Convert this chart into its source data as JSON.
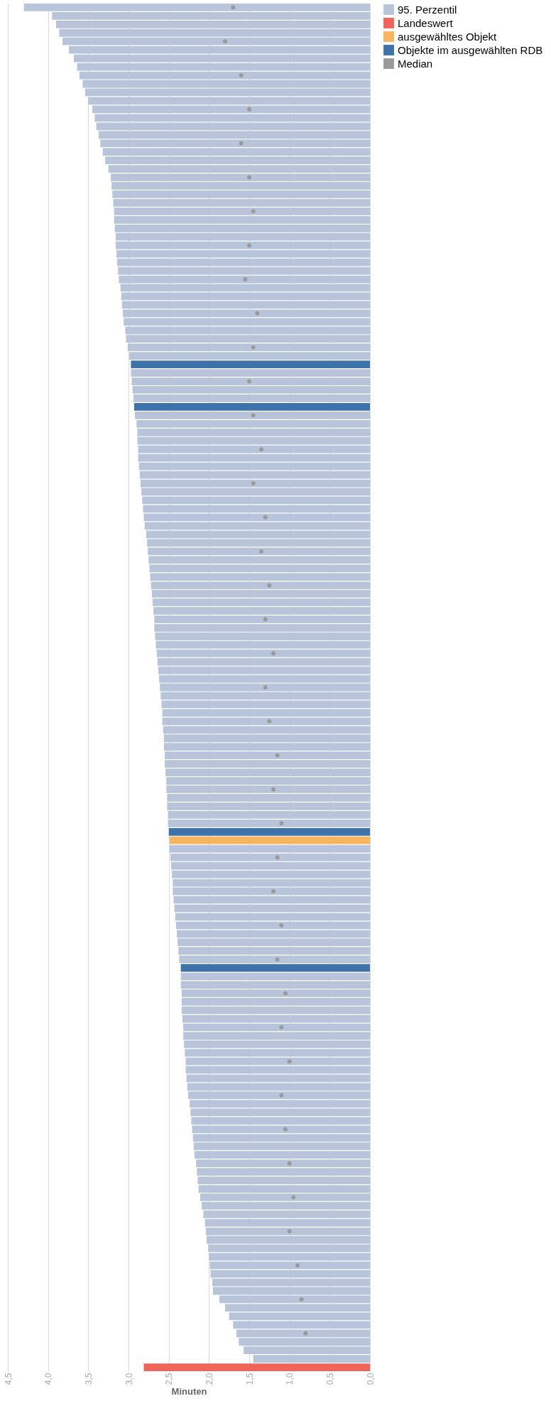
{
  "chart_data": {
    "type": "bar",
    "orientation": "horizontal",
    "xlabel": "Minuten",
    "categories": [
      null,
      null,
      null,
      null,
      null,
      null,
      null,
      null,
      null,
      null,
      null,
      null,
      null,
      null,
      null,
      null,
      null,
      null,
      null,
      null,
      null,
      null,
      null,
      null,
      null,
      null,
      null,
      null,
      null,
      null,
      null,
      null,
      null,
      null,
      null,
      null,
      null,
      null,
      null,
      null,
      null,
      null,
      null,
      null,
      null,
      null,
      null,
      null,
      null,
      null,
      null,
      null,
      null,
      null,
      null,
      null,
      null,
      null,
      null,
      null,
      null,
      null,
      null,
      null,
      null,
      null,
      null,
      null,
      null,
      null,
      null,
      null,
      null,
      null,
      null,
      null,
      null,
      null,
      null,
      null,
      null,
      null,
      null,
      null,
      null,
      null,
      null,
      null,
      null,
      null,
      null,
      null,
      null,
      null,
      null,
      null,
      null,
      null,
      null,
      null,
      null,
      null,
      null,
      null,
      null,
      null,
      null,
      null,
      null,
      null,
      null,
      null,
      null,
      null,
      null,
      null,
      null,
      null,
      null,
      null,
      null,
      null,
      null,
      null,
      null,
      null,
      null,
      null,
      null,
      null,
      null,
      null,
      null,
      null,
      null,
      null,
      null,
      null,
      null,
      null,
      null,
      null,
      null,
      null,
      null,
      null,
      null,
      null,
      null,
      null,
      null,
      null,
      null,
      null,
      null,
      null,
      null,
      null,
      null,
      null,
      null
    ],
    "series": [
      {
        "name": "95. Perzentil",
        "color": "#b7c4d9",
        "values": [
          4.3,
          3.95,
          3.9,
          3.86,
          3.82,
          3.74,
          3.68,
          3.64,
          3.61,
          3.57,
          3.54,
          3.5,
          3.45,
          3.42,
          3.4,
          3.37,
          3.35,
          3.32,
          3.29,
          3.25,
          3.22,
          3.21,
          3.2,
          3.19,
          3.18,
          3.18,
          3.17,
          3.16,
          3.16,
          3.15,
          3.14,
          3.13,
          3.12,
          3.1,
          3.09,
          3.08,
          3.07,
          3.06,
          3.04,
          3.03,
          3.01,
          2.99,
          null,
          2.97,
          2.96,
          2.95,
          2.94,
          null,
          2.92,
          2.9,
          2.89,
          2.89,
          2.88,
          2.88,
          2.87,
          2.86,
          2.85,
          2.84,
          2.83,
          2.82,
          2.81,
          2.8,
          2.78,
          2.77,
          2.76,
          2.75,
          2.74,
          2.73,
          2.72,
          2.71,
          2.7,
          2.69,
          2.68,
          2.68,
          2.67,
          2.66,
          2.65,
          2.64,
          2.63,
          2.62,
          2.61,
          2.6,
          2.59,
          2.58,
          2.58,
          2.57,
          2.56,
          2.56,
          2.55,
          2.55,
          2.54,
          2.53,
          2.53,
          2.52,
          2.52,
          2.51,
          2.51,
          null,
          null,
          2.49,
          2.48,
          2.47,
          2.46,
          2.45,
          2.45,
          2.44,
          2.43,
          2.42,
          2.41,
          2.4,
          2.39,
          2.38,
          2.37,
          null,
          2.35,
          2.35,
          2.34,
          2.34,
          2.34,
          2.33,
          2.32,
          2.32,
          2.31,
          2.3,
          2.29,
          2.29,
          2.28,
          2.27,
          2.26,
          2.24,
          2.23,
          2.22,
          2.21,
          2.2,
          2.19,
          2.18,
          2.16,
          2.15,
          2.14,
          2.13,
          2.11,
          2.09,
          2.07,
          2.05,
          2.04,
          2.03,
          2.01,
          2.0,
          1.99,
          1.98,
          1.96,
          1.95,
          1.87,
          1.8,
          1.75,
          1.7,
          1.66,
          1.63,
          1.57,
          1.45,
          null
        ]
      },
      {
        "name": "Landeswert",
        "color": "#f0645a",
        "values": [
          null,
          null,
          null,
          null,
          null,
          null,
          null,
          null,
          null,
          null,
          null,
          null,
          null,
          null,
          null,
          null,
          null,
          null,
          null,
          null,
          null,
          null,
          null,
          null,
          null,
          null,
          null,
          null,
          null,
          null,
          null,
          null,
          null,
          null,
          null,
          null,
          null,
          null,
          null,
          null,
          null,
          null,
          null,
          null,
          null,
          null,
          null,
          null,
          null,
          null,
          null,
          null,
          null,
          null,
          null,
          null,
          null,
          null,
          null,
          null,
          null,
          null,
          null,
          null,
          null,
          null,
          null,
          null,
          null,
          null,
          null,
          null,
          null,
          null,
          null,
          null,
          null,
          null,
          null,
          null,
          null,
          null,
          null,
          null,
          null,
          null,
          null,
          null,
          null,
          null,
          null,
          null,
          null,
          null,
          null,
          null,
          null,
          null,
          null,
          null,
          null,
          null,
          null,
          null,
          null,
          null,
          null,
          null,
          null,
          null,
          null,
          null,
          null,
          null,
          null,
          null,
          null,
          null,
          null,
          null,
          null,
          null,
          null,
          null,
          null,
          null,
          null,
          null,
          null,
          null,
          null,
          null,
          null,
          null,
          null,
          null,
          null,
          null,
          null,
          null,
          null,
          null,
          null,
          null,
          null,
          null,
          null,
          null,
          null,
          null,
          null,
          null,
          null,
          null,
          null,
          null,
          null,
          null,
          null,
          null,
          2.81
        ]
      },
      {
        "name": "ausgewähltes Objekt",
        "color": "#f7b560",
        "values": [
          null,
          null,
          null,
          null,
          null,
          null,
          null,
          null,
          null,
          null,
          null,
          null,
          null,
          null,
          null,
          null,
          null,
          null,
          null,
          null,
          null,
          null,
          null,
          null,
          null,
          null,
          null,
          null,
          null,
          null,
          null,
          null,
          null,
          null,
          null,
          null,
          null,
          null,
          null,
          null,
          null,
          null,
          null,
          null,
          null,
          null,
          null,
          null,
          null,
          null,
          null,
          null,
          null,
          null,
          null,
          null,
          null,
          null,
          null,
          null,
          null,
          null,
          null,
          null,
          null,
          null,
          null,
          null,
          null,
          null,
          null,
          null,
          null,
          null,
          null,
          null,
          null,
          null,
          null,
          null,
          null,
          null,
          null,
          null,
          null,
          null,
          null,
          null,
          null,
          null,
          null,
          null,
          null,
          null,
          null,
          null,
          null,
          null,
          2.49,
          null,
          null,
          null,
          null,
          null,
          null,
          null,
          null,
          null,
          null,
          null,
          null,
          null,
          null,
          null,
          null,
          null,
          null,
          null,
          null,
          null,
          null,
          null,
          null,
          null,
          null,
          null,
          null,
          null,
          null,
          null,
          null,
          null,
          null,
          null,
          null,
          null,
          null,
          null,
          null,
          null,
          null,
          null,
          null,
          null,
          null,
          null,
          null,
          null,
          null,
          null,
          null,
          null,
          null,
          null,
          null,
          null,
          null,
          null,
          null,
          null,
          null
        ]
      },
      {
        "name": "Objekte im ausgewählten RDB",
        "color": "#3d72aa",
        "values": [
          null,
          null,
          null,
          null,
          null,
          null,
          null,
          null,
          null,
          null,
          null,
          null,
          null,
          null,
          null,
          null,
          null,
          null,
          null,
          null,
          null,
          null,
          null,
          null,
          null,
          null,
          null,
          null,
          null,
          null,
          null,
          null,
          null,
          null,
          null,
          null,
          null,
          null,
          null,
          null,
          null,
          null,
          2.97,
          null,
          null,
          null,
          null,
          2.93,
          null,
          null,
          null,
          null,
          null,
          null,
          null,
          null,
          null,
          null,
          null,
          null,
          null,
          null,
          null,
          null,
          null,
          null,
          null,
          null,
          null,
          null,
          null,
          null,
          null,
          null,
          null,
          null,
          null,
          null,
          null,
          null,
          null,
          null,
          null,
          null,
          null,
          null,
          null,
          null,
          null,
          null,
          null,
          null,
          null,
          null,
          null,
          null,
          null,
          2.5,
          null,
          null,
          null,
          null,
          null,
          null,
          null,
          null,
          null,
          null,
          null,
          null,
          null,
          null,
          null,
          2.35,
          null,
          null,
          null,
          null,
          null,
          null,
          null,
          null,
          null,
          null,
          null,
          null,
          null,
          null,
          null,
          null,
          null,
          null,
          null,
          null,
          null,
          null,
          null,
          null,
          null,
          null,
          null,
          null,
          null,
          null,
          null,
          null,
          null,
          null,
          null,
          null,
          null,
          null,
          null,
          null,
          null,
          null,
          null,
          null,
          null,
          null,
          null
        ]
      },
      {
        "name": "Median",
        "color": "#9a9a9a",
        "type": "scatter",
        "values": [
          1.7,
          null,
          null,
          null,
          1.8,
          null,
          null,
          null,
          1.6,
          null,
          null,
          null,
          1.5,
          null,
          null,
          null,
          1.6,
          null,
          null,
          null,
          1.5,
          null,
          null,
          null,
          1.45,
          null,
          null,
          null,
          1.5,
          null,
          null,
          null,
          1.55,
          null,
          null,
          null,
          1.4,
          null,
          null,
          null,
          1.45,
          null,
          null,
          null,
          1.5,
          null,
          null,
          null,
          1.45,
          null,
          null,
          null,
          1.35,
          null,
          null,
          null,
          1.45,
          null,
          null,
          null,
          1.3,
          null,
          null,
          null,
          1.35,
          null,
          null,
          null,
          1.25,
          null,
          null,
          null,
          1.3,
          null,
          null,
          null,
          1.2,
          null,
          null,
          null,
          1.3,
          null,
          null,
          null,
          1.25,
          null,
          null,
          null,
          1.15,
          null,
          null,
          null,
          1.2,
          null,
          null,
          null,
          1.1,
          null,
          null,
          null,
          1.15,
          null,
          null,
          null,
          1.2,
          null,
          null,
          null,
          1.1,
          null,
          null,
          null,
          1.15,
          null,
          null,
          null,
          1.05,
          null,
          null,
          null,
          1.1,
          null,
          null,
          null,
          1.0,
          null,
          null,
          null,
          1.1,
          null,
          null,
          null,
          1.05,
          null,
          null,
          null,
          1.0,
          null,
          null,
          null,
          0.95,
          null,
          null,
          null,
          1.0,
          null,
          null,
          null,
          0.9,
          null,
          null,
          null,
          0.85,
          null,
          null,
          null,
          0.8,
          null,
          null,
          null,
          null
        ]
      }
    ],
    "xlim": [
      4.5,
      0
    ],
    "xticks": [
      {
        "value": 0,
        "label": "0,0"
      },
      {
        "value": 0.5,
        "label": "0,5"
      },
      {
        "value": 1,
        "label": "1,0"
      },
      {
        "value": 1.5,
        "label": "1,5"
      },
      {
        "value": 2,
        "label": "2,0"
      },
      {
        "value": 2.5,
        "label": "2,5"
      },
      {
        "value": 3,
        "label": "3,0"
      },
      {
        "value": 3.5,
        "label": "3,5"
      },
      {
        "value": 4,
        "label": "4,0"
      },
      {
        "value": 4.5,
        "label": "4,5"
      }
    ],
    "grid": "x",
    "legend": "right",
    "tick_labels": "x",
    "marker": "circle"
  }
}
